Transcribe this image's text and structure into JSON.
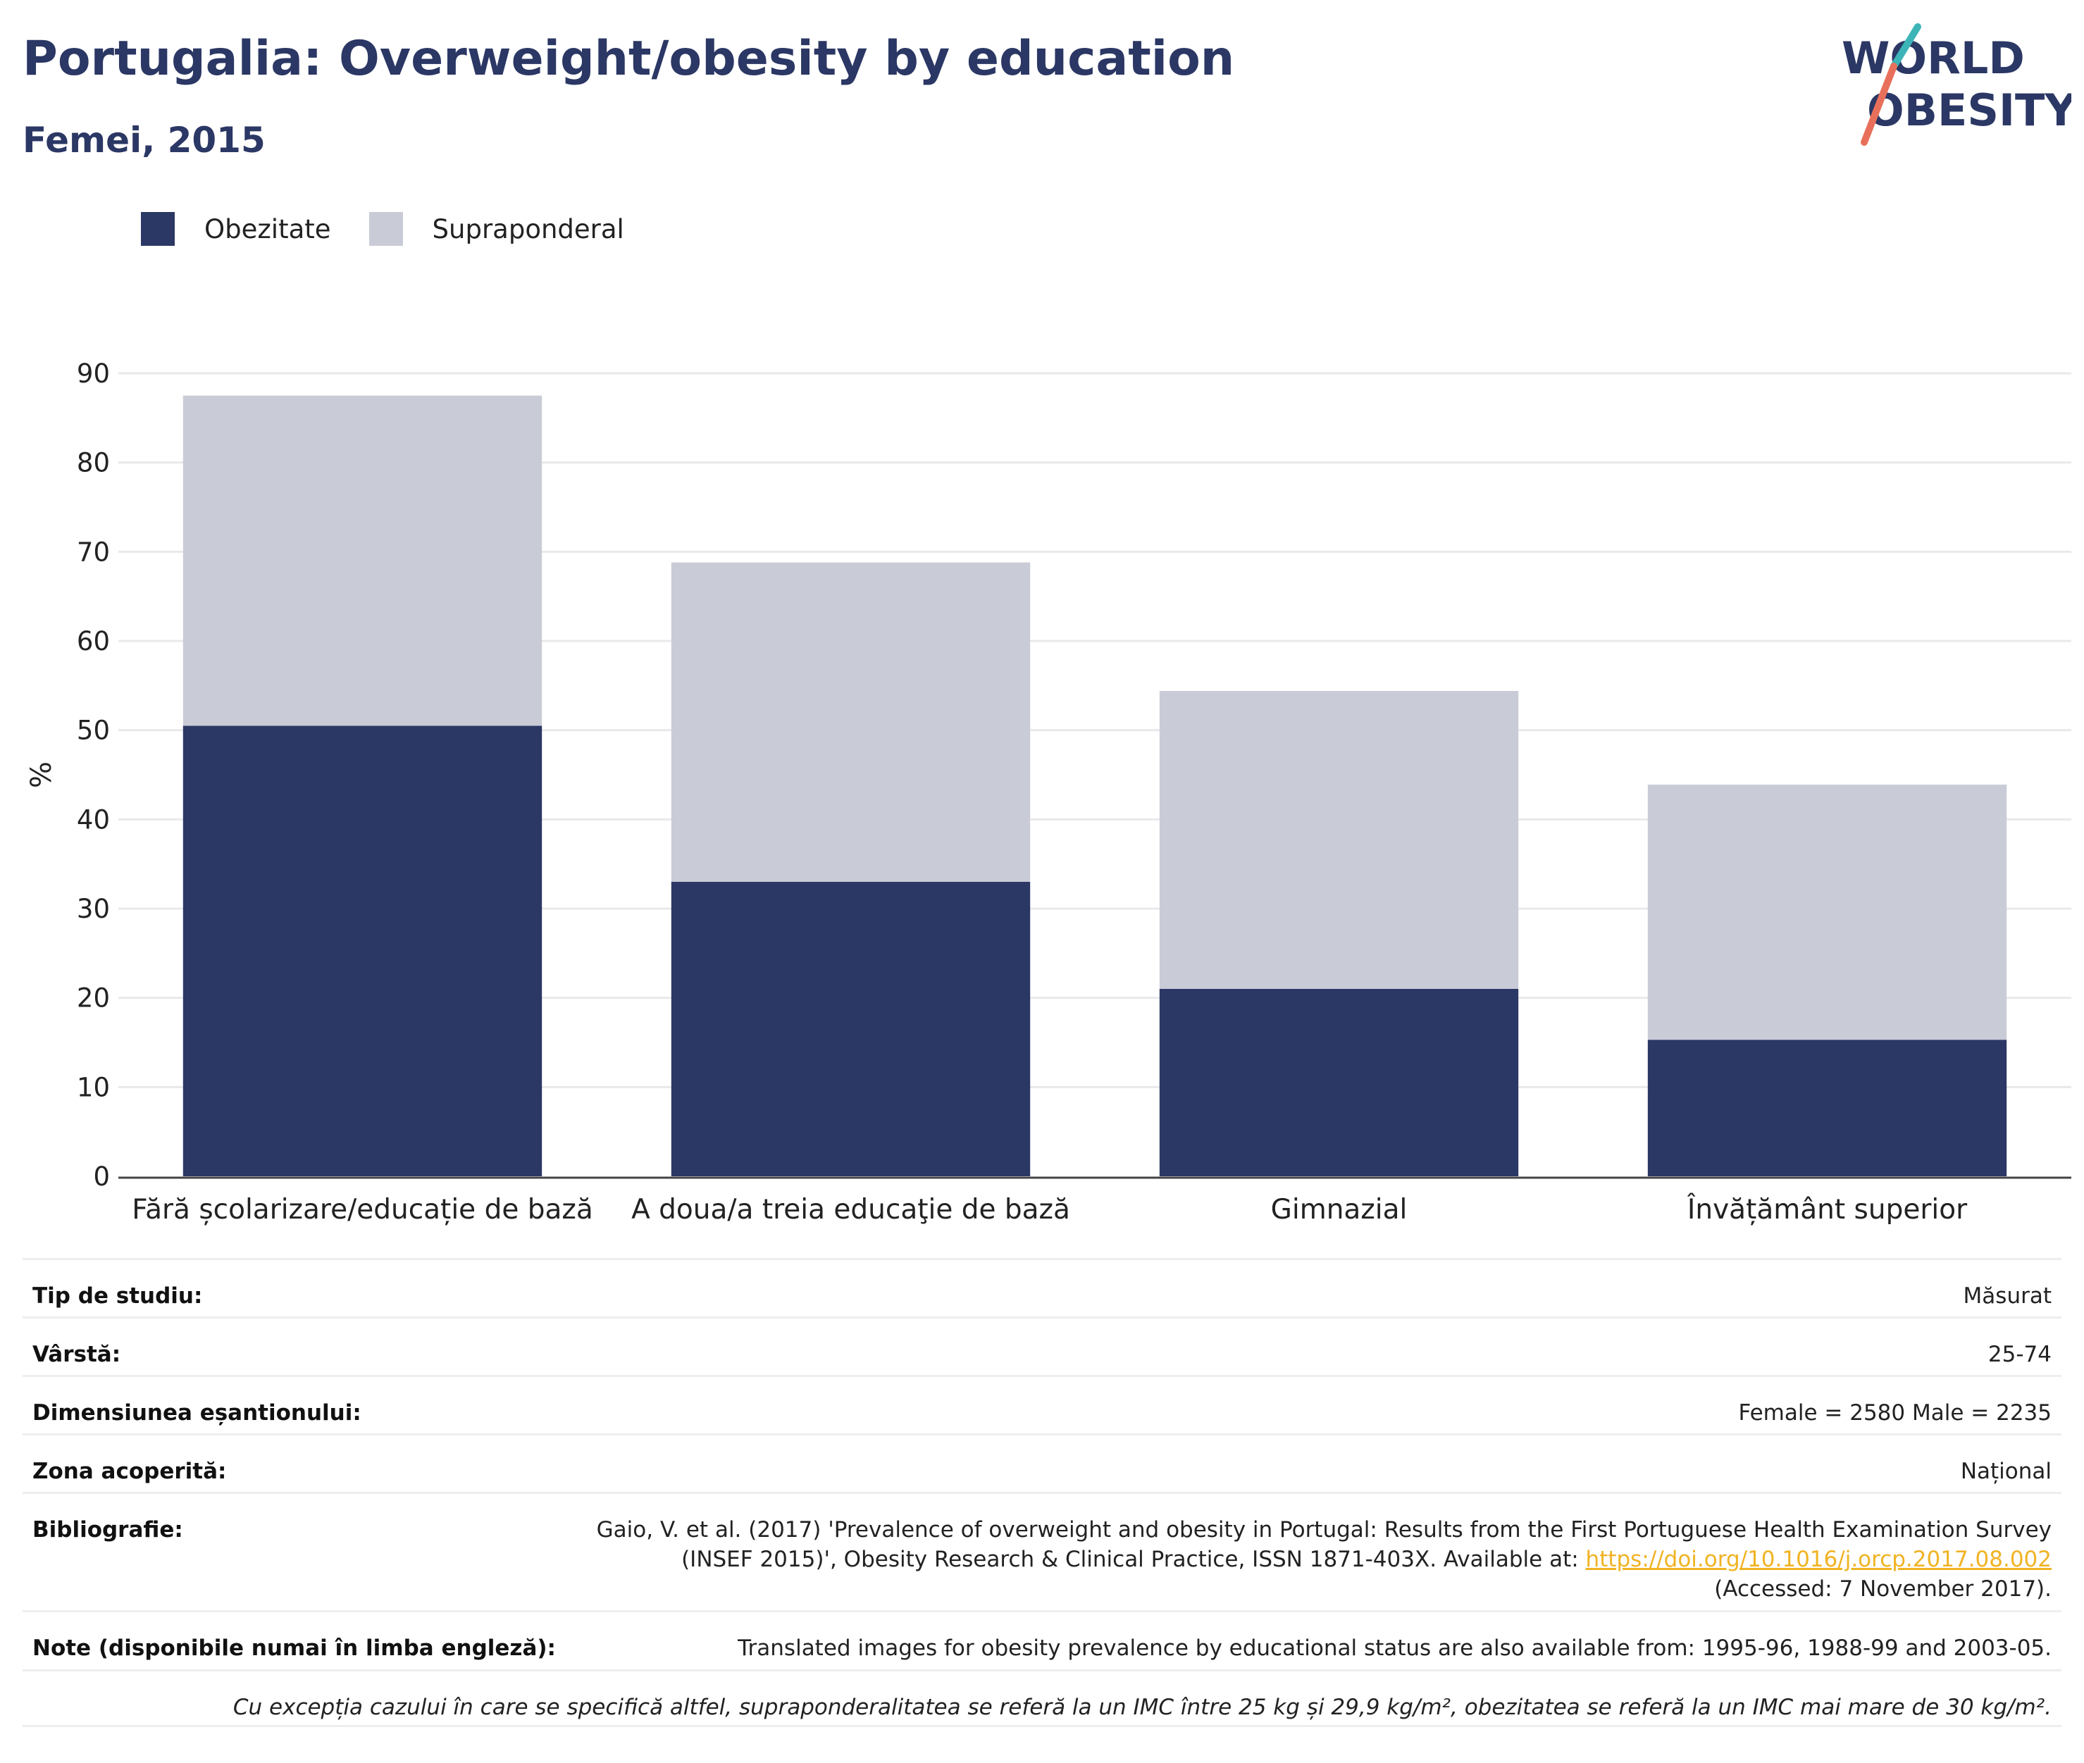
{
  "header": {
    "title": "Portugalia: Overweight/obesity by education",
    "subtitle": "Femei, 2015"
  },
  "logo": {
    "line1": "WORLD",
    "line2": "OBESITY"
  },
  "colors": {
    "obesity": "#2b3764",
    "overweight": "#c9cbd7",
    "title": "#2b3764",
    "gridline": "#e9e9ec",
    "link": "#f0b323"
  },
  "chart_data": {
    "type": "bar",
    "stacked": true,
    "categories": [
      "Fără școlarizare/educație de bază",
      "A doua/a treia educaţie de bază",
      "Gimnazial",
      "Învățământ superior"
    ],
    "series": [
      {
        "name": "Obezitate",
        "values": [
          50.5,
          33.0,
          21.0,
          15.3
        ]
      },
      {
        "name": "Supraponderal",
        "values": [
          37.0,
          35.8,
          33.4,
          28.6
        ]
      }
    ],
    "ylabel": "%",
    "ylim": [
      0,
      90
    ],
    "yticks": [
      0,
      10,
      20,
      30,
      40,
      50,
      60,
      70,
      80,
      90
    ],
    "grid": true,
    "legend": "top-left"
  },
  "info": {
    "rows": [
      {
        "key": "Tip de studiu:",
        "value": "Măsurat"
      },
      {
        "key": "Vârstă:",
        "value": "25-74"
      },
      {
        "key": "Dimensiunea eșantionului:",
        "value": "Female = 2580 Male = 2235"
      },
      {
        "key": "Zona acoperită:",
        "value": "Național"
      }
    ],
    "bibliography": {
      "key": "Bibliografie:",
      "line1": "Gaio, V. et al. (2017) 'Prevalence of overweight and obesity in Portugal: Results from the First Portuguese Health Examination Survey",
      "line2": "(INSEF 2015)', Obesity Research & Clinical Practice, ISSN 1871-403X. Available at: ",
      "link": "https://doi.org/10.1016/j.orcp.2017.08.002",
      "line3": "(Accessed: 7 November 2017)."
    },
    "notes": {
      "key": "Note (disponibile numai în limba engleză):",
      "value": "Translated images for obesity prevalence by educational status are also available from: 1995-96, 1988-99 and 2003-05."
    },
    "footnote": "Cu excepția cazului în care se specifică altfel, supraponderalitatea se referă la un IMC între 25 kg și 29,9 kg/m², obezitatea se referă la un IMC mai mare de 30 kg/m²."
  }
}
